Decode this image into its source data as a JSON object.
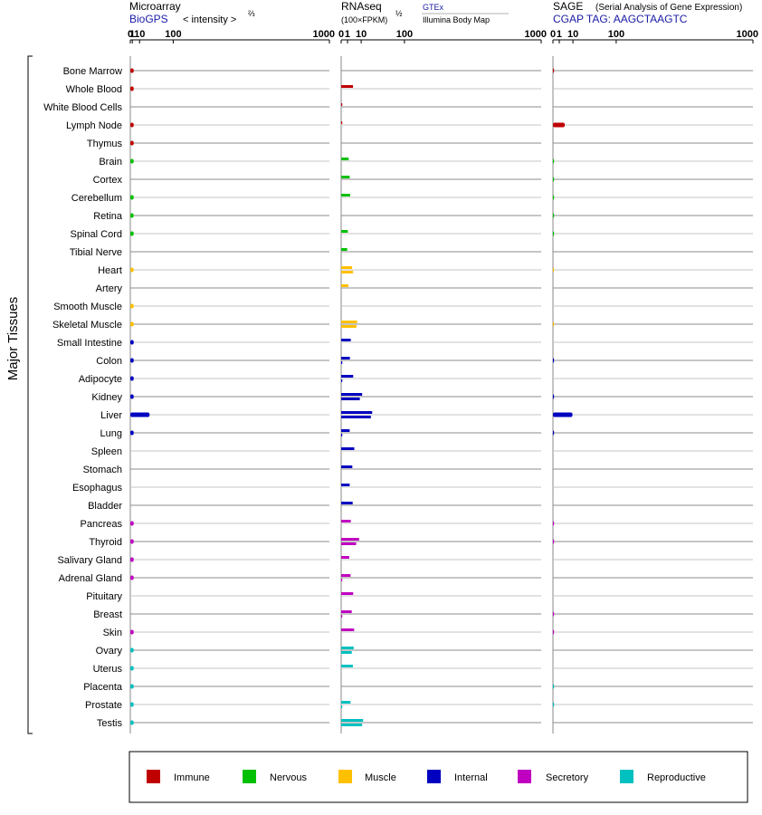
{
  "panels": {
    "microarray": {
      "title": "Microarray",
      "source": "BioGPS",
      "scale_label": "< intensity >",
      "scale_exp": "⅔"
    },
    "rnaseq": {
      "title": "RNAseq",
      "scale_label": "(100×FPKM)",
      "scale_exp": "½",
      "source_1": "GTEx",
      "source_2": "Illumina Body Map"
    },
    "sage": {
      "title": "SAGE",
      "subtitle": "(Serial Analysis of Gene Expression)",
      "tag_label": "CGAP TAG: AAGCTAAGTC"
    }
  },
  "y_group_label": "Major Tissues",
  "axis_ticks": [
    "0",
    "1",
    "10",
    "100",
    "1000"
  ],
  "legend": [
    {
      "name": "Immune",
      "color": "#c00000"
    },
    {
      "name": "Nervous",
      "color": "#00c000"
    },
    {
      "name": "Muscle",
      "color": "#ffc000"
    },
    {
      "name": "Internal",
      "color": "#0000c0"
    },
    {
      "name": "Secretory",
      "color": "#c000c0"
    },
    {
      "name": "Reproductive",
      "color": "#00c0c0"
    }
  ],
  "chart_data": {
    "type": "bar",
    "orientation": "horizontal",
    "x_scale": "power (microarray ⅔, RNAseq ½, SAGE ½)",
    "xlim": [
      0,
      1000
    ],
    "categories": [
      "Bone Marrow",
      "Whole Blood",
      "White Blood Cells",
      "Lymph Node",
      "Thymus",
      "Brain",
      "Cortex",
      "Cerebellum",
      "Retina",
      "Spinal Cord",
      "Tibial Nerve",
      "Heart",
      "Artery",
      "Smooth Muscle",
      "Skeletal Muscle",
      "Small Intestine",
      "Colon",
      "Adipocyte",
      "Kidney",
      "Liver",
      "Lung",
      "Spleen",
      "Stomach",
      "Esophagus",
      "Bladder",
      "Pancreas",
      "Thyroid",
      "Salivary Gland",
      "Adrenal Gland",
      "Pituitary",
      "Breast",
      "Skin",
      "Ovary",
      "Uterus",
      "Placenta",
      "Prostate",
      "Testis"
    ],
    "tissue_groups": [
      "Immune",
      "Immune",
      "Immune",
      "Immune",
      "Immune",
      "Nervous",
      "Nervous",
      "Nervous",
      "Nervous",
      "Nervous",
      "Nervous",
      "Muscle",
      "Muscle",
      "Muscle",
      "Muscle",
      "Internal",
      "Internal",
      "Internal",
      "Internal",
      "Internal",
      "Internal",
      "Internal",
      "Internal",
      "Internal",
      "Internal",
      "Secretory",
      "Secretory",
      "Secretory",
      "Secretory",
      "Secretory",
      "Secretory",
      "Secretory",
      "Reproductive",
      "Reproductive",
      "Reproductive",
      "Reproductive",
      "Reproductive"
    ],
    "microarray": [
      2.2,
      2.2,
      null,
      2.2,
      2.2,
      2.2,
      null,
      2.2,
      2.1,
      2.2,
      null,
      2.1,
      null,
      2.2,
      2.2,
      2.2,
      2.2,
      2.2,
      2.2,
      30,
      2.2,
      null,
      null,
      null,
      null,
      2.2,
      2.2,
      2.2,
      2.2,
      null,
      null,
      2.2,
      2.2,
      2.2,
      2.2,
      2.2,
      2.2
    ],
    "rnaseq_gtex": [
      null,
      3.5,
      0.03,
      0.02,
      null,
      1.4,
      1.8,
      2,
      null,
      1.1,
      0.9,
      3,
      1.3,
      null,
      6.4,
      2.3,
      1.9,
      3.6,
      11,
      24,
      1.8,
      4.3,
      3.1,
      1.8,
      3.3,
      2.3,
      8,
      1.6,
      2.2,
      3.6,
      2.8,
      4.2,
      3.9,
      3.4,
      null,
      2.2,
      12
    ],
    "rnaseq_ibm": [
      null,
      null,
      null,
      null,
      null,
      null,
      null,
      null,
      null,
      null,
      null,
      3.5,
      null,
      null,
      5.8,
      null,
      0.01,
      0.01,
      8.7,
      22,
      0.01,
      null,
      null,
      null,
      null,
      null,
      5.6,
      null,
      0.01,
      null,
      0.01,
      null,
      2.8,
      null,
      null,
      0.01,
      11
    ],
    "sage": [
      0.01,
      null,
      null,
      3.5,
      null,
      0.01,
      0.01,
      0.01,
      0.01,
      0.01,
      null,
      0.001,
      null,
      null,
      0.001,
      null,
      0.01,
      null,
      0.01,
      9.5,
      0.01,
      null,
      null,
      null,
      null,
      0.01,
      0.01,
      null,
      null,
      null,
      0.01,
      0.01,
      null,
      null,
      0.01,
      0.01,
      null
    ]
  }
}
